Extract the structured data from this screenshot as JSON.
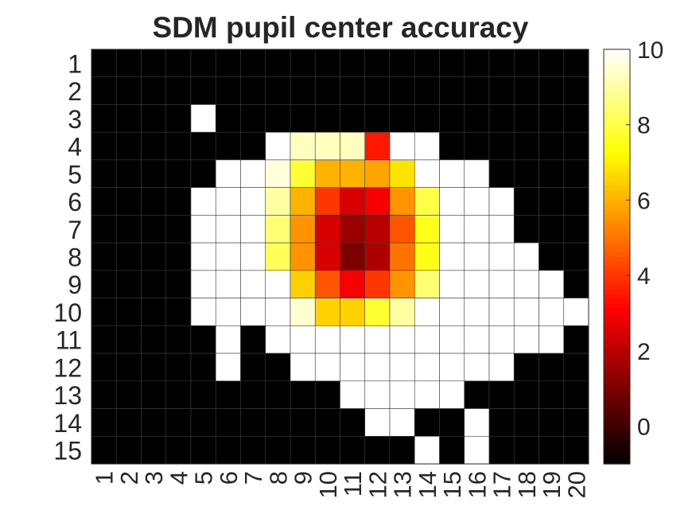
{
  "chart_data": {
    "type": "heatmap",
    "title": "SDM pupil center accuracy",
    "xlabel": "",
    "ylabel": "",
    "x_ticks": [
      "1",
      "2",
      "3",
      "4",
      "5",
      "6",
      "7",
      "8",
      "9",
      "10",
      "11",
      "12",
      "13",
      "14",
      "15",
      "16",
      "17",
      "18",
      "19",
      "20"
    ],
    "y_ticks": [
      "1",
      "2",
      "3",
      "4",
      "5",
      "6",
      "7",
      "8",
      "9",
      "10",
      "11",
      "12",
      "13",
      "14",
      "15"
    ],
    "colormap": "hot",
    "clim": [
      -1,
      10
    ],
    "colorbar_ticks": [
      "0",
      "2",
      "4",
      "6",
      "8",
      "10"
    ],
    "grid": true,
    "values": [
      [
        -1,
        -1,
        -1,
        -1,
        -1,
        -1,
        -1,
        -1,
        -1,
        -1,
        -1,
        -1,
        -1,
        -1,
        -1,
        -1,
        -1,
        -1,
        -1,
        -1
      ],
      [
        -1,
        -1,
        -1,
        -1,
        -1,
        -1,
        -1,
        -1,
        -1,
        -1,
        -1,
        -1,
        -1,
        -1,
        -1,
        -1,
        -1,
        -1,
        -1,
        -1
      ],
      [
        -1,
        -1,
        -1,
        -1,
        10,
        -1,
        -1,
        -1,
        -1,
        -1,
        -1,
        -1,
        -1,
        -1,
        -1,
        -1,
        -1,
        -1,
        -1,
        -1
      ],
      [
        -1,
        -1,
        -1,
        -1,
        -1,
        -1,
        -1,
        10,
        9.3,
        9.3,
        9.3,
        3.5,
        10,
        10,
        -1,
        -1,
        -1,
        -1,
        -1,
        -1
      ],
      [
        -1,
        -1,
        -1,
        -1,
        -1,
        10,
        10,
        9.6,
        7.8,
        6,
        6,
        5.8,
        6.8,
        10,
        10,
        10,
        -1,
        -1,
        -1,
        -1
      ],
      [
        -1,
        -1,
        -1,
        -1,
        10,
        10,
        10,
        9,
        6,
        4,
        2.5,
        3,
        5.5,
        8,
        10,
        10,
        10,
        -1,
        -1,
        -1
      ],
      [
        -1,
        -1,
        -1,
        -1,
        10,
        10,
        10,
        8.5,
        5.5,
        2.5,
        1.5,
        2,
        4.5,
        7.5,
        10,
        10,
        10,
        -1,
        -1,
        -1
      ],
      [
        -1,
        -1,
        -1,
        -1,
        10,
        10,
        10,
        8.2,
        5.5,
        2.5,
        1,
        1.8,
        5,
        7.5,
        10,
        10,
        10,
        10,
        -1,
        -1
      ],
      [
        -1,
        -1,
        -1,
        -1,
        10,
        10,
        10,
        10,
        6.5,
        4.5,
        3,
        4,
        5.5,
        8.5,
        10,
        10,
        10,
        10,
        10,
        -1
      ],
      [
        -1,
        -1,
        -1,
        -1,
        10,
        10,
        10,
        10,
        9.5,
        6.5,
        6.5,
        7.8,
        9,
        10,
        10,
        10,
        10,
        10,
        10,
        10
      ],
      [
        -1,
        -1,
        -1,
        -1,
        -1,
        10,
        -1,
        10,
        10,
        10,
        10,
        10,
        10,
        10,
        10,
        10,
        10,
        10,
        10,
        -1
      ],
      [
        -1,
        -1,
        -1,
        -1,
        -1,
        10,
        -1,
        -1,
        10,
        10,
        10,
        10,
        10,
        10,
        10,
        10,
        10,
        -1,
        -1,
        -1
      ],
      [
        -1,
        -1,
        -1,
        -1,
        -1,
        -1,
        -1,
        -1,
        -1,
        -1,
        10,
        10,
        10,
        10,
        10,
        -1,
        -1,
        -1,
        -1,
        -1
      ],
      [
        -1,
        -1,
        -1,
        -1,
        -1,
        -1,
        -1,
        -1,
        -1,
        -1,
        -1,
        10,
        10,
        -1,
        -1,
        10,
        -1,
        -1,
        -1,
        -1
      ],
      [
        -1,
        -1,
        -1,
        -1,
        -1,
        -1,
        -1,
        -1,
        -1,
        -1,
        -1,
        -1,
        -1,
        10,
        -1,
        10,
        -1,
        -1,
        -1,
        -1
      ]
    ]
  }
}
